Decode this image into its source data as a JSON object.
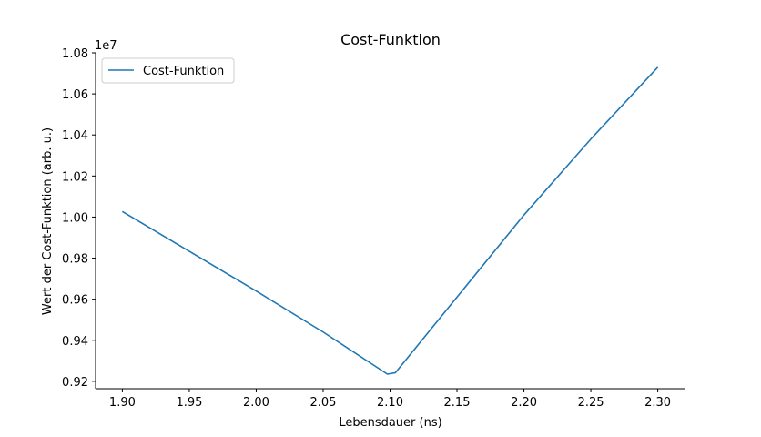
{
  "chart_data": {
    "type": "line",
    "title": "Cost-Funktion",
    "xlabel": "Lebensdauer (ns)",
    "ylabel": "Wert der Cost-Funktion (arb. u.)",
    "y_offset_label": "1e7",
    "xlim": [
      1.88,
      2.32
    ],
    "ylim": [
      9.164,
      10.8
    ],
    "x_ticks": [
      1.9,
      1.95,
      2.0,
      2.05,
      2.1,
      2.15,
      2.2,
      2.25,
      2.3
    ],
    "x_tick_labels": [
      "1.90",
      "1.95",
      "2.00",
      "2.05",
      "2.10",
      "2.15",
      "2.20",
      "2.25",
      "2.30"
    ],
    "y_ticks": [
      9.2,
      9.4,
      9.6,
      9.8,
      10.0,
      10.2,
      10.4,
      10.6,
      10.8
    ],
    "y_tick_labels": [
      "0.92",
      "0.94",
      "0.96",
      "0.98",
      "1.00",
      "1.02",
      "1.04",
      "1.06",
      "1.08"
    ],
    "grid": false,
    "legend_position": "top-left",
    "series": [
      {
        "name": "Cost-Funktion",
        "color": "#1f77b4",
        "x": [
          1.9,
          2.0,
          2.05,
          2.098,
          2.104,
          2.15,
          2.2,
          2.25,
          2.3
        ],
        "y": [
          10.027,
          9.64,
          9.44,
          9.235,
          9.242,
          9.61,
          10.01,
          10.38,
          10.73
        ]
      }
    ]
  }
}
